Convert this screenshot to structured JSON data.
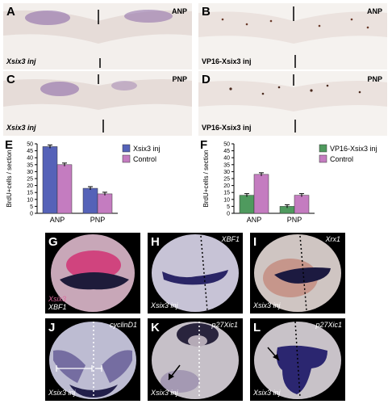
{
  "panels": {
    "A": {
      "letter": "A",
      "region": "ANP",
      "inj": "Xsix3 inj"
    },
    "B": {
      "letter": "B",
      "region": "ANP",
      "inj": "VP16-Xsix3 inj"
    },
    "C": {
      "letter": "C",
      "region": "PNP",
      "inj": "Xsix3 inj"
    },
    "D": {
      "letter": "D",
      "region": "PNP",
      "inj": "VP16-Xsix3 inj"
    },
    "G": {
      "letter": "G",
      "marker_top": "Xsix3",
      "marker_bottom": "XBF1"
    },
    "H": {
      "letter": "H",
      "marker": "XBF1",
      "inj": "Xsix3 inj"
    },
    "I": {
      "letter": "I",
      "marker": "Xrx1",
      "inj": "Xsix3 inj"
    },
    "J": {
      "letter": "J",
      "marker": "cyclinD1",
      "inj": "Xsix3 inj"
    },
    "K": {
      "letter": "K",
      "marker": "p27Xic1",
      "inj": "Xsix3 inj"
    },
    "L": {
      "letter": "L",
      "marker": "p27Xic1",
      "inj": "Xsix3 inj"
    }
  },
  "chart_data": [
    {
      "panel": "E",
      "type": "bar",
      "ylabel": "BrdU+cells / section",
      "ylim": [
        0,
        50
      ],
      "yticks": [
        "0",
        "5",
        "10",
        "15",
        "20",
        "25",
        "30",
        "35",
        "40",
        "45",
        "50"
      ],
      "categories": [
        "ANP",
        "PNP"
      ],
      "series": [
        {
          "name": "Xsix3 inj",
          "color": "#5562b8",
          "values": [
            48,
            18
          ]
        },
        {
          "name": "Control",
          "color": "#c47cc0",
          "values": [
            35,
            14
          ]
        }
      ]
    },
    {
      "panel": "F",
      "type": "bar",
      "ylabel": "BrdU+cells / section",
      "ylim": [
        0,
        50
      ],
      "yticks": [
        "0",
        "5",
        "10",
        "15",
        "20",
        "25",
        "30",
        "35",
        "40",
        "45",
        "50"
      ],
      "categories": [
        "ANP",
        "PNP"
      ],
      "series": [
        {
          "name": "VP16-Xsix3 inj",
          "color": "#4f9a5e",
          "values": [
            13,
            5
          ]
        },
        {
          "name": "Control",
          "color": "#c47cc0",
          "values": [
            28,
            13
          ]
        }
      ]
    }
  ],
  "chart_letters": {
    "E": "E",
    "F": "F"
  }
}
